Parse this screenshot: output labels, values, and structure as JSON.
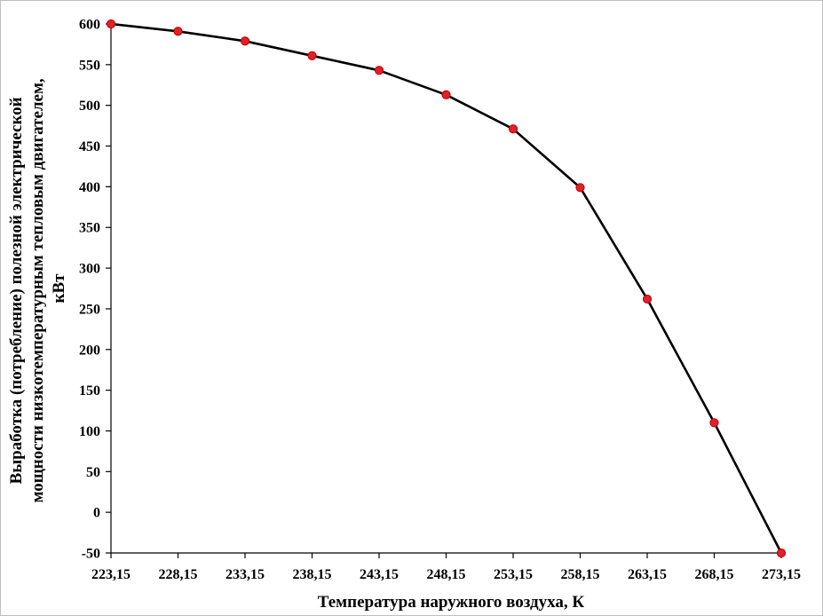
{
  "chart_data": {
    "type": "line",
    "x_categories": [
      "223,15",
      "228,15",
      "233,15",
      "238,15",
      "243,15",
      "248,15",
      "253,15",
      "258,15",
      "263,15",
      "268,15",
      "273,15"
    ],
    "series": [
      {
        "values": [
          600,
          591,
          579,
          561,
          543,
          513,
          471,
          399,
          262,
          110,
          -50
        ]
      }
    ],
    "y_ticks": [
      "-50",
      "0",
      "50",
      "100",
      "150",
      "200",
      "250",
      "300",
      "350",
      "400",
      "450",
      "500",
      "550",
      "600"
    ],
    "ylim": [
      -50,
      600
    ],
    "xlabel": "Температура наружного воздуха, К",
    "ylabel_lines": [
      "Выработка (потребление) полезной электрической",
      "мощности низкотемпературным тепловым двигателем,",
      "кВт"
    ],
    "grid": false,
    "legend": "none",
    "colors": {
      "line": "#000000",
      "marker": "#e0202a",
      "marker_edge": "#c00000",
      "axis": "#000000"
    }
  }
}
